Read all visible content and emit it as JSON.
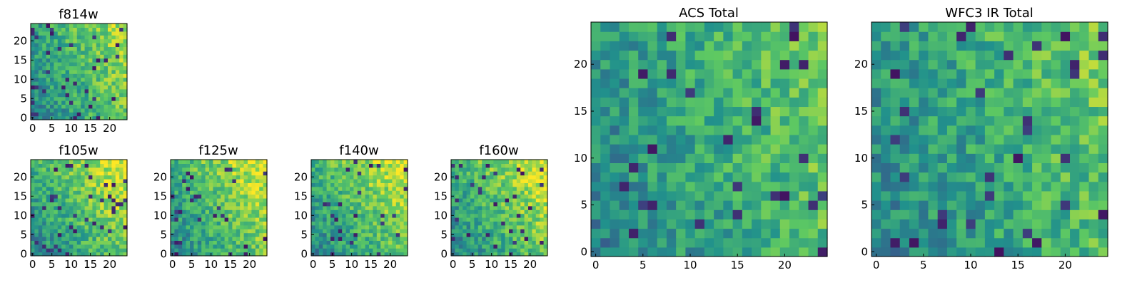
{
  "figure": {
    "colormap": "viridis",
    "colors": [
      "#440154",
      "#3b528b",
      "#21918c",
      "#5ec962",
      "#fde725"
    ]
  },
  "chart_data": [
    {
      "type": "heatmap",
      "title": "f814w",
      "grid_size": 25,
      "xlim": [
        0,
        24
      ],
      "ylim": [
        0,
        24
      ],
      "x_ticks": [
        "0",
        "5",
        "10",
        "15",
        "20"
      ],
      "y_ticks": [
        "0",
        "5",
        "10",
        "15",
        "20"
      ],
      "grid": false
    },
    {
      "type": "heatmap",
      "title": "f105w",
      "grid_size": 25,
      "xlim": [
        0,
        24
      ],
      "ylim": [
        0,
        24
      ],
      "x_ticks": [
        "0",
        "5",
        "10",
        "15",
        "20"
      ],
      "y_ticks": [
        "0",
        "5",
        "10",
        "15",
        "20"
      ],
      "grid": false
    },
    {
      "type": "heatmap",
      "title": "f125w",
      "grid_size": 25,
      "xlim": [
        0,
        24
      ],
      "ylim": [
        0,
        24
      ],
      "x_ticks": [
        "0",
        "5",
        "10",
        "15",
        "20"
      ],
      "y_ticks": [
        "0",
        "5",
        "10",
        "15",
        "20"
      ],
      "grid": false
    },
    {
      "type": "heatmap",
      "title": "f140w",
      "grid_size": 25,
      "xlim": [
        0,
        24
      ],
      "ylim": [
        0,
        24
      ],
      "x_ticks": [
        "0",
        "5",
        "10",
        "15",
        "20"
      ],
      "y_ticks": [
        "0",
        "5",
        "10",
        "15",
        "20"
      ],
      "grid": false
    },
    {
      "type": "heatmap",
      "title": "f160w",
      "grid_size": 25,
      "xlim": [
        0,
        24
      ],
      "ylim": [
        0,
        24
      ],
      "x_ticks": [
        "0",
        "5",
        "10",
        "15",
        "20"
      ],
      "y_ticks": [
        "0",
        "5",
        "10",
        "15",
        "20"
      ],
      "grid": false
    },
    {
      "type": "heatmap",
      "title": "ACS Total",
      "grid_size": 25,
      "xlim": [
        0,
        24
      ],
      "ylim": [
        0,
        24
      ],
      "x_ticks": [
        "0",
        "5",
        "10",
        "15",
        "20"
      ],
      "y_ticks": [
        "0",
        "5",
        "10",
        "15",
        "20"
      ],
      "grid": false
    },
    {
      "type": "heatmap",
      "title": "WFC3 IR Total",
      "grid_size": 25,
      "xlim": [
        0,
        24
      ],
      "ylim": [
        0,
        24
      ],
      "x_ticks": [
        "0",
        "5",
        "10",
        "15",
        "20"
      ],
      "y_ticks": [
        "0",
        "5",
        "10",
        "15",
        "20"
      ],
      "grid": false
    }
  ]
}
